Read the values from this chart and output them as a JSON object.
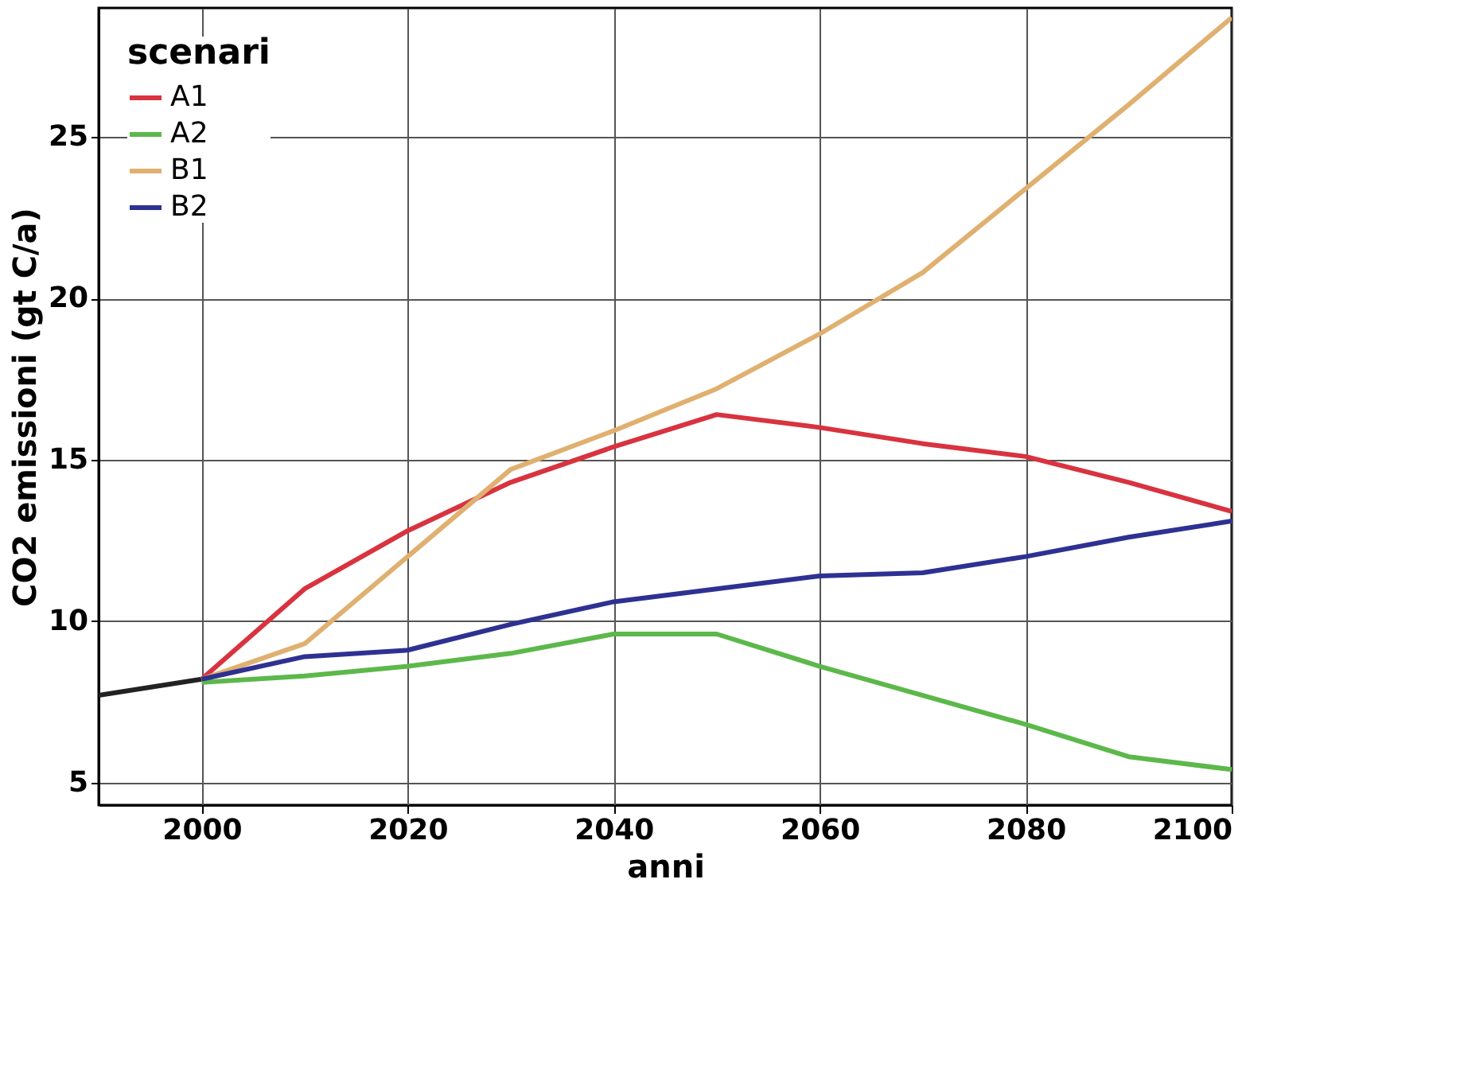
{
  "chart_data": {
    "type": "line",
    "xlabel": "anni",
    "ylabel": "CO2 emissioni (gt C/a)",
    "legend_title": "scenari",
    "x": [
      2000,
      2010,
      2020,
      2030,
      2040,
      2050,
      2060,
      2070,
      2080,
      2090,
      2100
    ],
    "series": [
      {
        "color": "#222222",
        "x": [
          1990,
          2000
        ],
        "values": [
          7.7,
          8.2
        ]
      },
      {
        "name": "A1",
        "color": "#d8333f",
        "values": [
          8.2,
          11.0,
          12.8,
          14.3,
          15.4,
          16.4,
          16.0,
          15.5,
          15.1,
          14.3,
          13.4
        ]
      },
      {
        "name": "A2",
        "color": "#5cb84a",
        "values": [
          8.1,
          8.3,
          8.6,
          9.0,
          9.6,
          9.6,
          8.6,
          7.7,
          6.8,
          5.8,
          5.4
        ]
      },
      {
        "name": "B1",
        "color": "#e0b070",
        "values": [
          8.2,
          9.3,
          12.0,
          14.7,
          15.9,
          17.2,
          18.9,
          20.8,
          23.4,
          26.0,
          28.7
        ]
      },
      {
        "name": "B2",
        "color": "#2e3192",
        "values": [
          8.2,
          8.9,
          9.1,
          9.9,
          10.6,
          11.0,
          11.4,
          11.5,
          12.0,
          12.6,
          13.1
        ]
      }
    ],
    "xlim": [
      1990,
      2100
    ],
    "ylim": [
      4.3,
      29
    ],
    "xticks": [
      2000,
      2020,
      2040,
      2060,
      2080,
      2100
    ],
    "yticks": [
      5,
      10,
      15,
      20,
      25
    ],
    "grid": true,
    "legend": "top left",
    "marker": "none",
    "line_style": "solid"
  }
}
